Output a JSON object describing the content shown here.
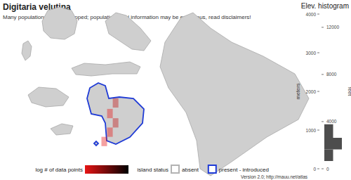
{
  "title": "Digitaria velutina",
  "subtitle": "Many populations not yet mapped; population level information may be erroneous, read disclaimers!",
  "map": {
    "islands": [
      "absent",
      "absent",
      "absent",
      "absent",
      "absent",
      "absent",
      "present - introduced",
      "present - introduced",
      "absent"
    ],
    "cells": [
      {
        "lon": -156.33,
        "lat": 20.88,
        "value": 0.3
      },
      {
        "lon": -156.4,
        "lat": 20.8,
        "value": 0
      },
      {
        "lon": -156.33,
        "lat": 20.73,
        "value": 0.3
      },
      {
        "lon": -156.4,
        "lat": 20.66,
        "value": 0
      },
      {
        "lon": -156.47,
        "lat": 20.59,
        "value": 0
      }
    ],
    "color_range": [
      0,
      2
    ]
  },
  "legend": {
    "color_title": "log # of data points",
    "status_title": "island status",
    "statuses": [
      {
        "label": "absent",
        "color": "#b3b3b3"
      },
      {
        "label": "present - introduced",
        "color": "#1f3bd6"
      }
    ]
  },
  "chart_data": {
    "type": "histogram",
    "title": "Elev. histogram",
    "orientation": "horizontal",
    "bins": [
      200,
      500,
      800,
      1150
    ],
    "values": [
      1,
      2,
      1
    ],
    "color": "#4d4d4d",
    "ylabel": "meters",
    "y2label": "feet",
    "ylim": [
      0,
      4000
    ],
    "yticks": [
      0,
      1000,
      2000,
      3000,
      4000
    ],
    "y2lim": [
      0,
      13123
    ],
    "y2ticks": [
      0,
      4000,
      8000,
      12000
    ],
    "xlim": [
      0,
      2
    ],
    "tick_labels": "y"
  },
  "footer": "Version 2.0; http://mauu.net/atlas"
}
